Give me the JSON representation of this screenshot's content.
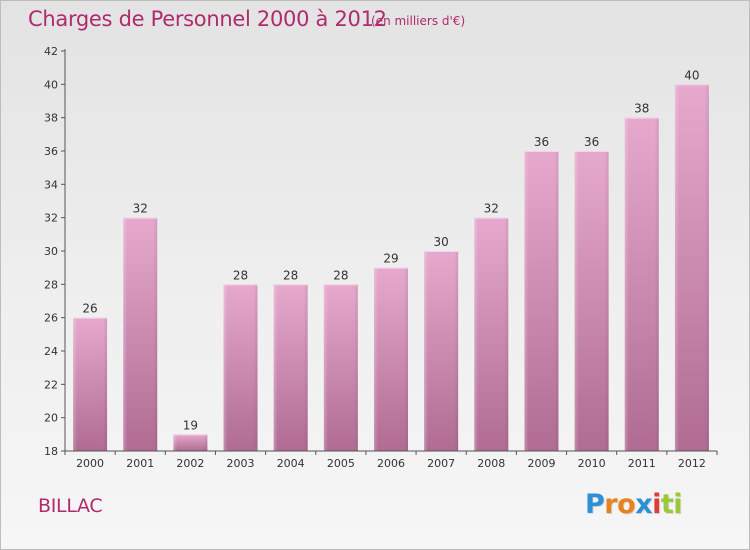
{
  "page": {
    "title": "Charges de Personnel 2000 à 2012",
    "subtitle": "(en milliers d'€)",
    "commune": "BILLAC",
    "brand": {
      "letters": [
        "P",
        "r",
        "o",
        "x",
        "i",
        "t",
        "i"
      ],
      "colors": [
        "#2d8fd5",
        "#e8821e",
        "#e8821e",
        "#2d8fd5",
        "#e23b3b",
        "#9bc83a",
        "#9bc83a"
      ]
    }
  },
  "chart_data": {
    "type": "bar",
    "categories": [
      "2000",
      "2001",
      "2002",
      "2003",
      "2004",
      "2005",
      "2006",
      "2007",
      "2008",
      "2009",
      "2010",
      "2011",
      "2012"
    ],
    "values": [
      26,
      32,
      19,
      28,
      28,
      28,
      29,
      30,
      32,
      36,
      36,
      38,
      40
    ],
    "ylim": [
      18,
      42
    ],
    "yticks": [
      18,
      20,
      22,
      24,
      26,
      28,
      30,
      32,
      34,
      36,
      38,
      40,
      42
    ],
    "grid": false,
    "bar_color_top": "#e6a9cd",
    "bar_color_bottom": "#b06c93",
    "axis_color": "#555555",
    "label_color": "#333333"
  }
}
